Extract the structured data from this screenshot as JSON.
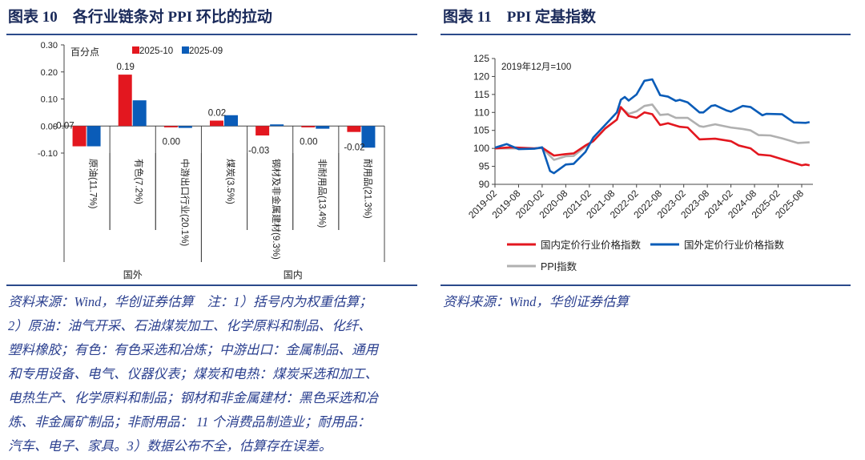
{
  "left": {
    "title": "图表 10　各行业链条对 PPI 环比的拉动",
    "notes": [
      "资料来源：Wind，华创证券估算　注：1）括号内为权重估算；",
      "2）原油：油气开采、石油煤炭加工、化学原料和制品、化纤、",
      "塑料橡胶；有色：有色采选和冶炼；中游出口：金属制品、通用",
      "和专用设备、电气、仪器仪表；煤炭和电热：煤炭采选和加工、",
      "电热生产、化学原料和制品；钢材和非金属建材：黑色采选和冶",
      "炼、非金属矿制品；非耐用品： 11 个消费品制造业；耐用品：",
      "汽车、电子、家具。3）数据公布不全，估算存在误差。"
    ]
  },
  "right": {
    "title": "图表 11　PPI 定基指数",
    "source": "资料来源：Wind，华创证券估算"
  },
  "chart_data": [
    {
      "type": "bar",
      "unit_label": "百分点",
      "categories": [
        "原油(11.7%)",
        "有色(7.2%)",
        "中游出口行业(20.1%)",
        "煤炭(3.5%)",
        "钢材及非金属建材(9.3%)",
        "非耐用品(13.4%)",
        "耐用品(21.3%)"
      ],
      "groups": [
        {
          "label": "国外",
          "count": 3
        },
        {
          "label": "国内",
          "count": 4
        }
      ],
      "series": [
        {
          "name": "2025-10",
          "color": "#e3171f",
          "values": [
            -0.075,
            0.19,
            -0.005,
            0.02,
            -0.035,
            -0.005,
            -0.022
          ]
        },
        {
          "name": "2025-09",
          "color": "#0a5cb8",
          "values": [
            -0.075,
            0.095,
            -0.007,
            0.04,
            0.006,
            -0.01,
            -0.08
          ]
        }
      ],
      "data_labels": [
        "-0.07",
        "0.19",
        "0.00",
        "0.02",
        "-0.03",
        "0.00",
        "-0.02"
      ],
      "ylim": [
        -0.1,
        0.3
      ],
      "yticks": [
        "0.30",
        "0.20",
        "0.10",
        "0.00",
        "-0.10"
      ],
      "legend": "top"
    },
    {
      "type": "line",
      "annotation": "2019年12月=100",
      "ylim": [
        90,
        125
      ],
      "yticks": [
        125,
        120,
        115,
        110,
        105,
        100,
        95,
        90
      ],
      "xticks": [
        "2019-02",
        "2019-08",
        "2020-02",
        "2020-08",
        "2021-02",
        "2021-08",
        "2022-02",
        "2022-08",
        "2023-02",
        "2023-08",
        "2024-02",
        "2024-08",
        "2025-02",
        "2025-08"
      ],
      "legend": "bottom",
      "series": [
        {
          "name": "国内定价行业价格指数",
          "color": "#e3171f",
          "points": [
            [
              "2019-02",
              100
            ],
            [
              "2019-06",
              100.3
            ],
            [
              "2019-12",
              100
            ],
            [
              "2020-02",
              100.2
            ],
            [
              "2020-05",
              98
            ],
            [
              "2020-08",
              98.4
            ],
            [
              "2020-10",
              98.6
            ],
            [
              "2021-01",
              100.8
            ],
            [
              "2021-03",
              102
            ],
            [
              "2021-06",
              105.5
            ],
            [
              "2021-09",
              108
            ],
            [
              "2021-10",
              111.5
            ],
            [
              "2021-12",
              109
            ],
            [
              "2022-02",
              108.5
            ],
            [
              "2022-04",
              110
            ],
            [
              "2022-06",
              109.5
            ],
            [
              "2022-08",
              106.5
            ],
            [
              "2022-10",
              107
            ],
            [
              "2023-01",
              106
            ],
            [
              "2023-03",
              105.8
            ],
            [
              "2023-06",
              102.5
            ],
            [
              "2023-10",
              102.7
            ],
            [
              "2024-02",
              102
            ],
            [
              "2024-04",
              100.8
            ],
            [
              "2024-07",
              100
            ],
            [
              "2024-09",
              98.3
            ],
            [
              "2024-12",
              98
            ],
            [
              "2025-03",
              97
            ],
            [
              "2025-08",
              95.3
            ],
            [
              "2025-09",
              95.5
            ],
            [
              "2025-10",
              95.3
            ]
          ]
        },
        {
          "name": "国外定价行业价格指数",
          "color": "#0a5cb8",
          "points": [
            [
              "2019-02",
              100.2
            ],
            [
              "2019-05",
              101.2
            ],
            [
              "2019-08",
              99.8
            ],
            [
              "2019-12",
              99.9
            ],
            [
              "2020-02",
              100.3
            ],
            [
              "2020-04",
              93.7
            ],
            [
              "2020-05",
              93.1
            ],
            [
              "2020-08",
              95.5
            ],
            [
              "2020-10",
              95.7
            ],
            [
              "2021-01",
              99
            ],
            [
              "2021-03",
              103
            ],
            [
              "2021-06",
              106.5
            ],
            [
              "2021-09",
              110
            ],
            [
              "2021-10",
              113.5
            ],
            [
              "2021-11",
              114.3
            ],
            [
              "2021-12",
              113.3
            ],
            [
              "2022-02",
              115
            ],
            [
              "2022-04",
              118.8
            ],
            [
              "2022-06",
              119.2
            ],
            [
              "2022-08",
              114.8
            ],
            [
              "2022-10",
              114.4
            ],
            [
              "2022-12",
              113.2
            ],
            [
              "2023-01",
              113.5
            ],
            [
              "2023-03",
              112.8
            ],
            [
              "2023-06",
              110
            ],
            [
              "2023-07",
              110
            ],
            [
              "2023-09",
              111.8
            ],
            [
              "2023-10",
              112
            ],
            [
              "2024-01",
              110.5
            ],
            [
              "2024-02",
              110.2
            ],
            [
              "2024-05",
              111.8
            ],
            [
              "2024-07",
              111.5
            ],
            [
              "2024-10",
              109.2
            ],
            [
              "2024-11",
              109.6
            ],
            [
              "2025-03",
              109.5
            ],
            [
              "2025-06",
              107.2
            ],
            [
              "2025-09",
              107.1
            ],
            [
              "2025-10",
              107.3
            ]
          ]
        },
        {
          "name": "PPI指数",
          "color": "#b0b0b0",
          "points": [
            [
              "2019-02",
              100
            ],
            [
              "2019-12",
              100
            ],
            [
              "2020-02",
              100.1
            ],
            [
              "2020-05",
              96.8
            ],
            [
              "2020-08",
              97.8
            ],
            [
              "2020-10",
              97.9
            ],
            [
              "2021-01",
              100.5
            ],
            [
              "2021-03",
              102
            ],
            [
              "2021-06",
              105.5
            ],
            [
              "2021-09",
              108
            ],
            [
              "2021-10",
              111.3
            ],
            [
              "2021-12",
              109.6
            ],
            [
              "2022-02",
              110.3
            ],
            [
              "2022-04",
              111.8
            ],
            [
              "2022-06",
              112.2
            ],
            [
              "2022-08",
              109.3
            ],
            [
              "2022-10",
              109.5
            ],
            [
              "2022-12",
              108.5
            ],
            [
              "2023-03",
              108.5
            ],
            [
              "2023-06",
              106.2
            ],
            [
              "2023-07",
              106
            ],
            [
              "2023-10",
              106.7
            ],
            [
              "2024-02",
              105.8
            ],
            [
              "2024-05",
              105.4
            ],
            [
              "2024-07",
              105
            ],
            [
              "2024-09",
              103.7
            ],
            [
              "2024-12",
              103.6
            ],
            [
              "2025-03",
              102.8
            ],
            [
              "2025-07",
              101.5
            ],
            [
              "2025-10",
              101.7
            ]
          ]
        }
      ]
    }
  ]
}
